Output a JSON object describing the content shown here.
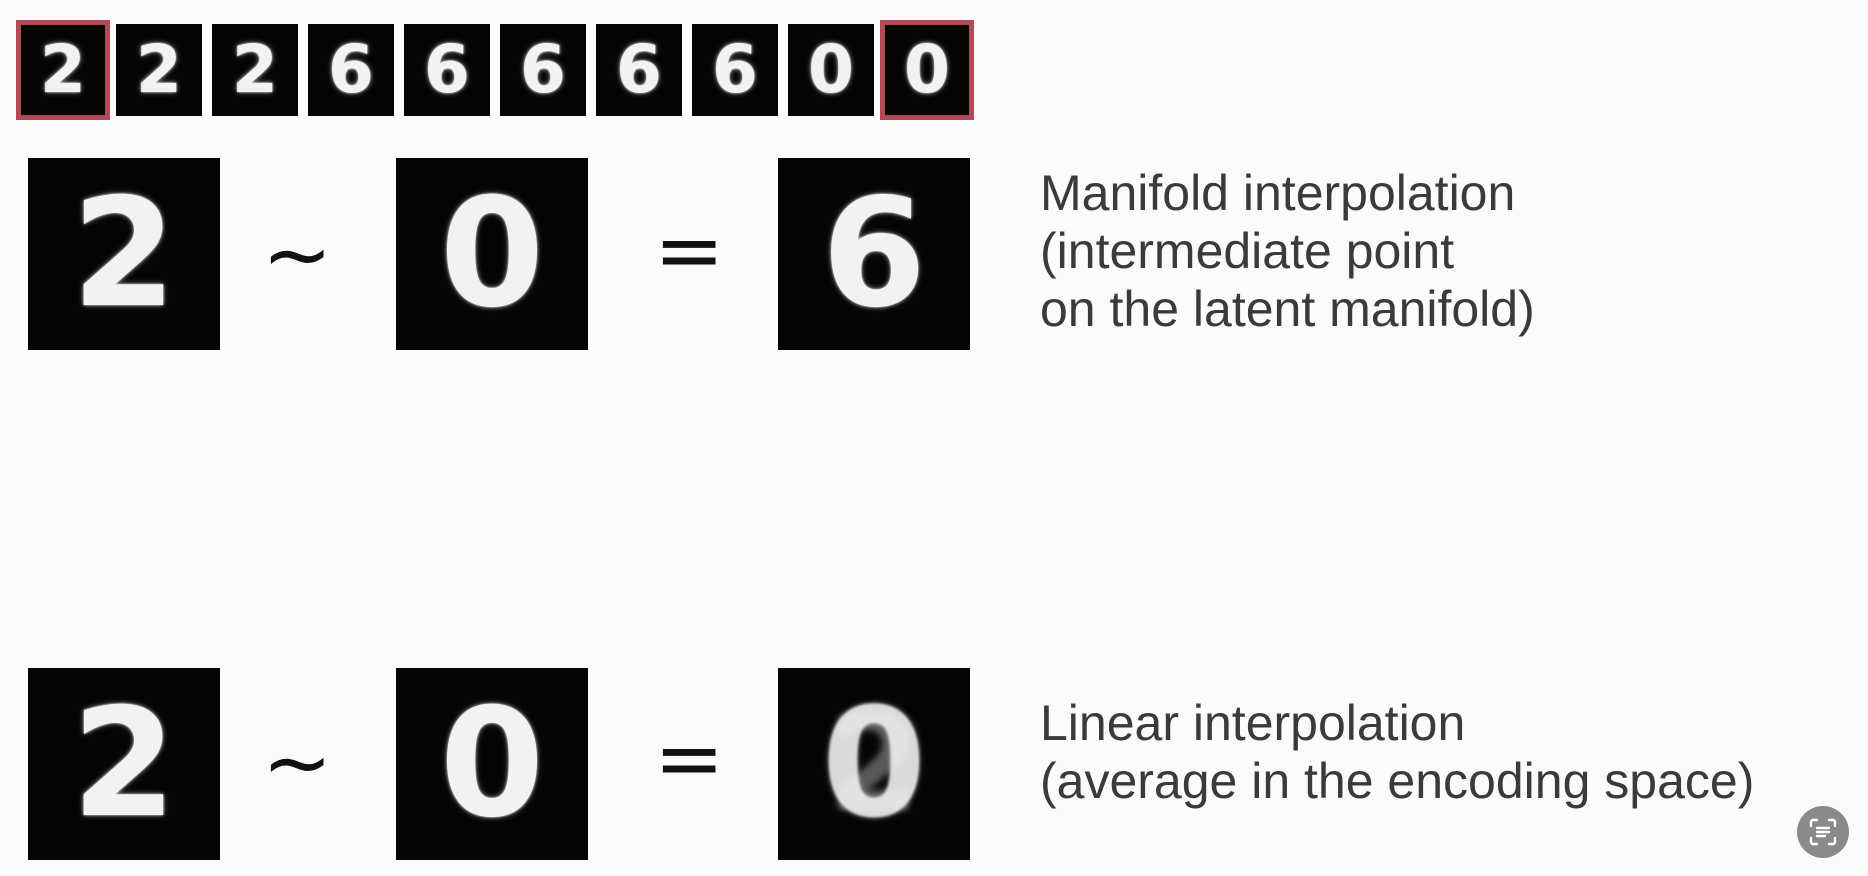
{
  "strip": {
    "digits": [
      "2",
      "2",
      "2",
      "6",
      "6",
      "6",
      "6",
      "6",
      "0",
      "0"
    ],
    "highlight_colour": "#b34a55"
  },
  "manifold": {
    "left_digit": "2",
    "right_digit": "0",
    "result_digit": "6",
    "similarity_op": "~",
    "equals_op": "=",
    "caption_line1": "Manifold interpolation",
    "caption_line2": "(intermediate point",
    "caption_line3": "on the latent manifold)"
  },
  "linear": {
    "left_digit": "2",
    "right_digit": "0",
    "result_digit": "0",
    "similarity_op": "~",
    "equals_op": "=",
    "caption_line1": "Linear interpolation",
    "caption_line2": "(average in the encoding space)"
  },
  "overlay": {
    "icon": "text-scan-icon"
  }
}
